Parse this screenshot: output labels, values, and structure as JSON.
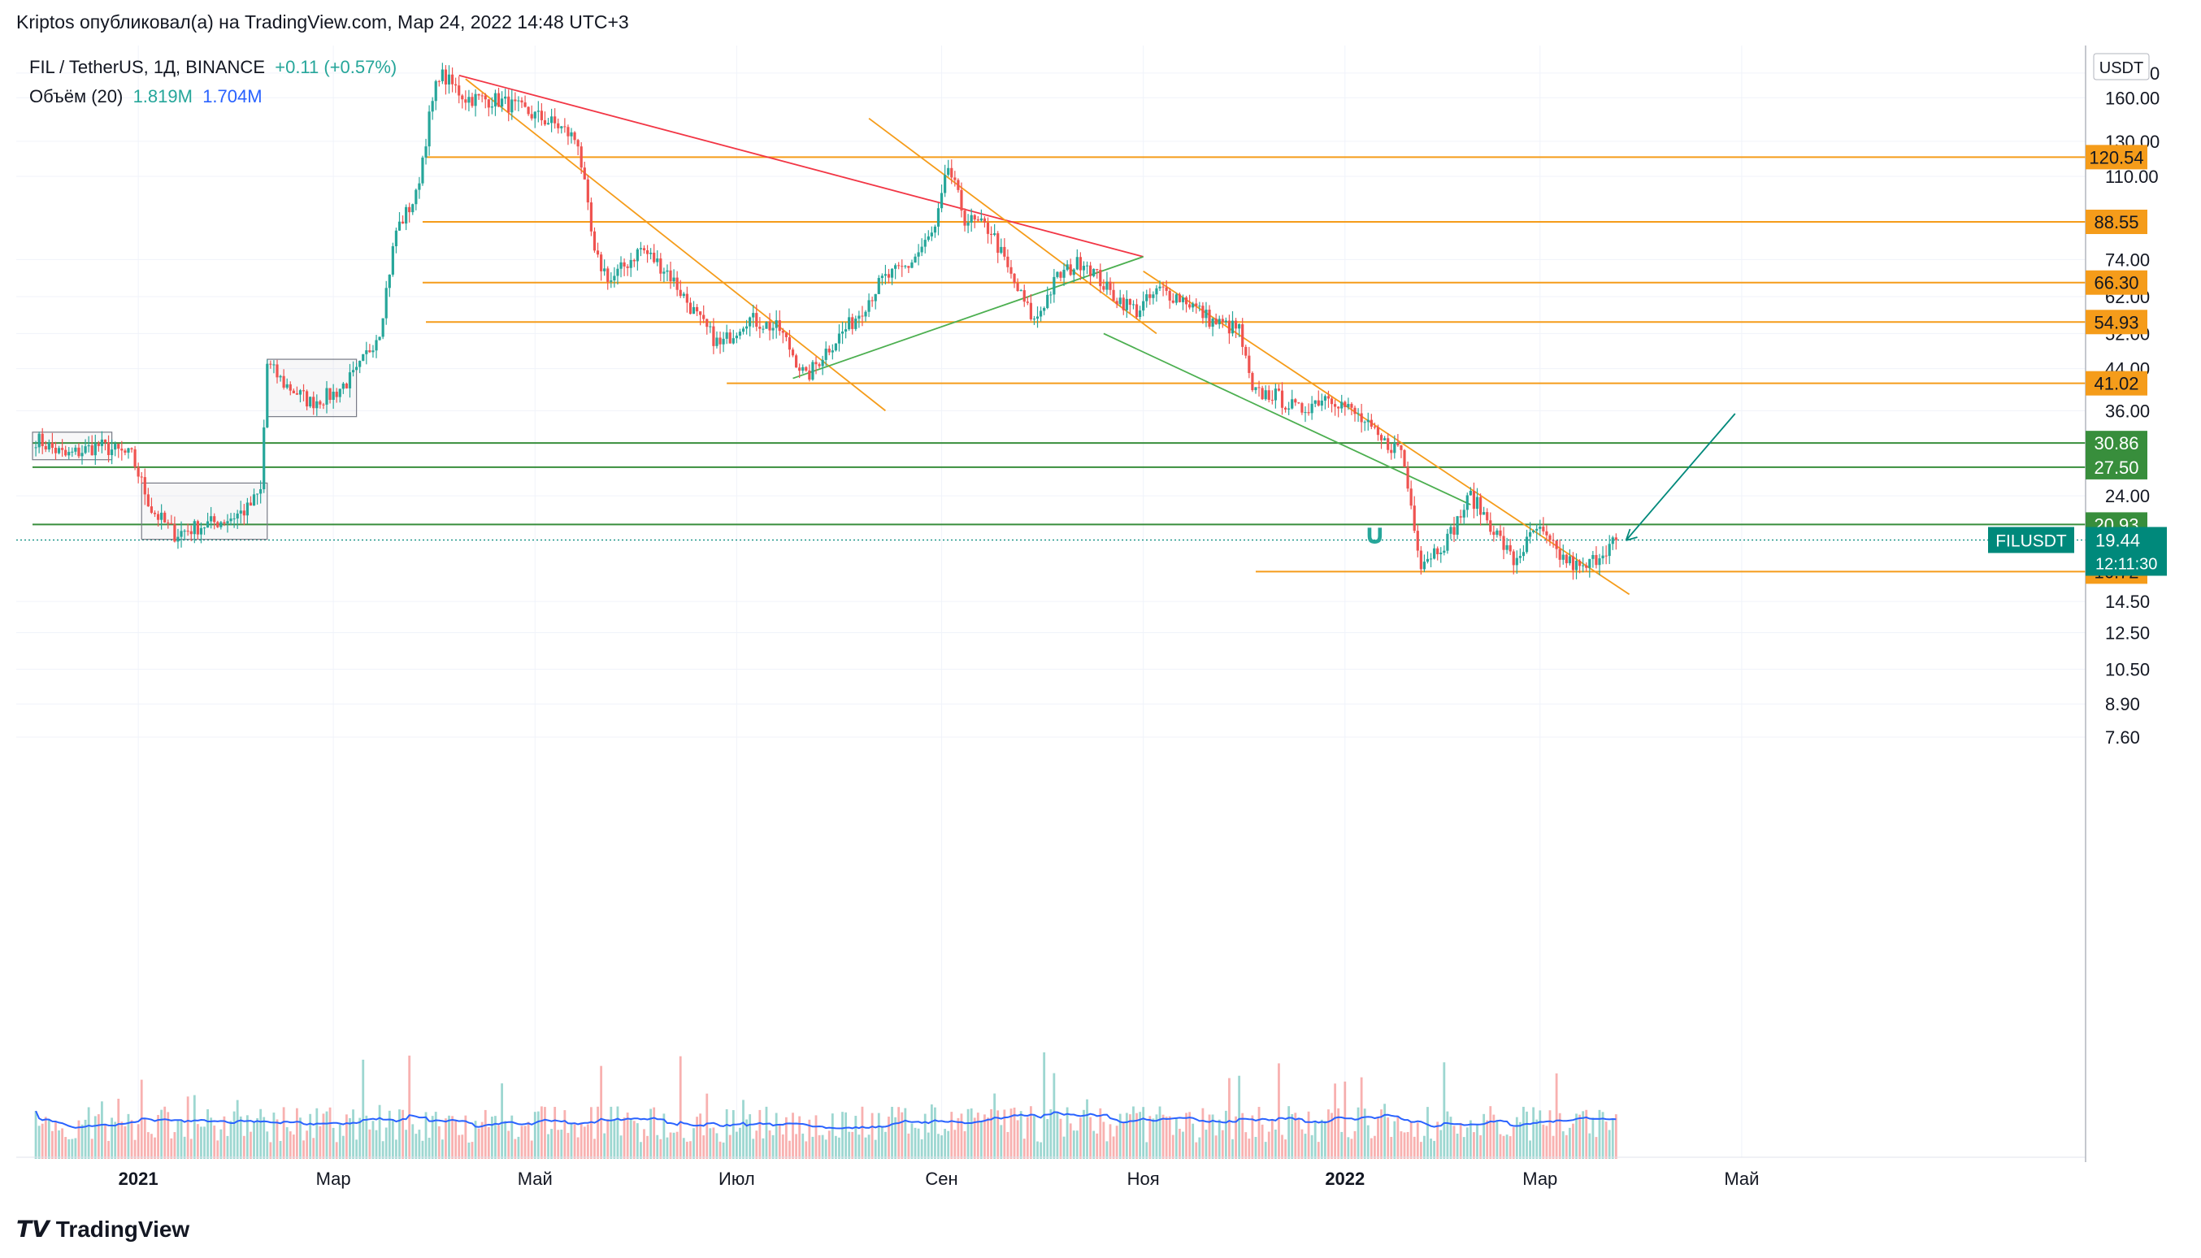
{
  "header": {
    "published": "Kriptos опубликовал(а) на TradingView.com, Мар 24, 2022 14:48 UTC+3"
  },
  "legend": {
    "symbol": "FIL / TetherUS, 1Д, BINANCE",
    "change": "+0.11 (+0.57%)",
    "volume_label": "Объём (20)",
    "volume_value": "1.819M",
    "volume_ma": "1.704M"
  },
  "footer": {
    "brand": "TradingView"
  },
  "colors": {
    "up": "#26a69a",
    "down": "#ef5350",
    "orange": "#f59c1a",
    "red_line": "#f23645",
    "green_line": "#4caf50",
    "dark_green": "#388e3c",
    "teal": "#00897b",
    "volume_ma": "#2962ff"
  },
  "chart_data": {
    "type": "candlestick",
    "symbol": "FIL / TetherUS",
    "timeframe": "1Д",
    "exchange": "BINANCE",
    "yscale": "log",
    "currency": "USDT",
    "ylim": [
      5.6,
      180
    ],
    "y_ticks": [
      180.0,
      160.0,
      130.0,
      110.0,
      74.0,
      62.0,
      52.0,
      44.0,
      36.0,
      24.0,
      14.5,
      12.5,
      10.5,
      8.9,
      7.6
    ],
    "x_ticks": [
      "2021",
      "Мар",
      "Май",
      "Июл",
      "Сен",
      "Ноя",
      "2022",
      "Мар",
      "Май"
    ],
    "last_price": {
      "label": "FILUSDT",
      "value": "19.44",
      "countdown": "12:11:30",
      "price": 19.44
    },
    "horizontal_levels": [
      {
        "value": 120.54,
        "label": "120.54",
        "color": "orange"
      },
      {
        "value": 88.55,
        "label": "88.55",
        "color": "orange"
      },
      {
        "value": 66.3,
        "label": "66.30",
        "color": "orange"
      },
      {
        "value": 54.93,
        "label": "54.93",
        "color": "orange"
      },
      {
        "value": 41.02,
        "label": "41.02",
        "color": "orange"
      },
      {
        "value": 30.86,
        "label": "30.86",
        "color": "dark_green"
      },
      {
        "value": 27.5,
        "label": "27.50",
        "color": "dark_green"
      },
      {
        "value": 20.93,
        "label": "20.93",
        "color": "dark_green"
      },
      {
        "value": 16.72,
        "label": "16.72",
        "color": "orange"
      }
    ],
    "price_path": [
      [
        "2020-12-01",
        31.5
      ],
      [
        "2020-12-10",
        29.0
      ],
      [
        "2020-12-20",
        30.5
      ],
      [
        "2020-12-30",
        29.0
      ],
      [
        "2021-01-05",
        22.5
      ],
      [
        "2021-01-12",
        20.0
      ],
      [
        "2021-01-20",
        20.8
      ],
      [
        "2021-01-28",
        21.5
      ],
      [
        "2021-02-03",
        22.5
      ],
      [
        "2021-02-07",
        24.5
      ],
      [
        "2021-02-09",
        45.0
      ],
      [
        "2021-02-14",
        41.0
      ],
      [
        "2021-02-22",
        37.5
      ],
      [
        "2021-03-01",
        39.0
      ],
      [
        "2021-03-08",
        43.0
      ],
      [
        "2021-03-15",
        53.0
      ],
      [
        "2021-03-20",
        85.0
      ],
      [
        "2021-03-26",
        100.0
      ],
      [
        "2021-03-30",
        145.0
      ],
      [
        "2021-04-02",
        180.0
      ],
      [
        "2021-04-10",
        160.0
      ],
      [
        "2021-04-20",
        158.0
      ],
      [
        "2021-04-28",
        150.0
      ],
      [
        "2021-05-08",
        140.0
      ],
      [
        "2021-05-14",
        130.0
      ],
      [
        "2021-05-19",
        75.0
      ],
      [
        "2021-05-24",
        67.0
      ],
      [
        "2021-06-02",
        78.0
      ],
      [
        "2021-06-10",
        70.0
      ],
      [
        "2021-06-20",
        55.0
      ],
      [
        "2021-06-26",
        49.0
      ],
      [
        "2021-07-04",
        56.0
      ],
      [
        "2021-07-14",
        53.0
      ],
      [
        "2021-07-22",
        42.0
      ],
      [
        "2021-07-28",
        48.0
      ],
      [
        "2021-08-05",
        55.0
      ],
      [
        "2021-08-14",
        67.0
      ],
      [
        "2021-08-22",
        72.0
      ],
      [
        "2021-08-30",
        85.0
      ],
      [
        "2021-09-03",
        115.0
      ],
      [
        "2021-09-08",
        90.0
      ],
      [
        "2021-09-16",
        85.0
      ],
      [
        "2021-09-22",
        68.0
      ],
      [
        "2021-09-29",
        55.0
      ],
      [
        "2021-10-06",
        68.0
      ],
      [
        "2021-10-14",
        74.0
      ],
      [
        "2021-10-22",
        63.0
      ],
      [
        "2021-10-30",
        58.0
      ],
      [
        "2021-11-06",
        64.0
      ],
      [
        "2021-11-14",
        61.0
      ],
      [
        "2021-11-22",
        55.0
      ],
      [
        "2021-11-30",
        53.0
      ],
      [
        "2021-12-04",
        39.0
      ],
      [
        "2021-12-10",
        39.0
      ],
      [
        "2021-12-18",
        36.0
      ],
      [
        "2021-12-27",
        39.0
      ],
      [
        "2022-01-05",
        35.0
      ],
      [
        "2022-01-12",
        31.0
      ],
      [
        "2022-01-18",
        30.0
      ],
      [
        "2022-01-24",
        17.5
      ],
      [
        "2022-02-01",
        19.5
      ],
      [
        "2022-02-08",
        24.0
      ],
      [
        "2022-02-14",
        21.0
      ],
      [
        "2022-02-21",
        17.5
      ],
      [
        "2022-02-28",
        20.5
      ],
      [
        "2022-03-07",
        18.0
      ],
      [
        "2022-03-14",
        16.8
      ],
      [
        "2022-03-20",
        18.5
      ],
      [
        "2022-03-24",
        19.44
      ]
    ],
    "volume_ma_label": "Объём (20)"
  }
}
